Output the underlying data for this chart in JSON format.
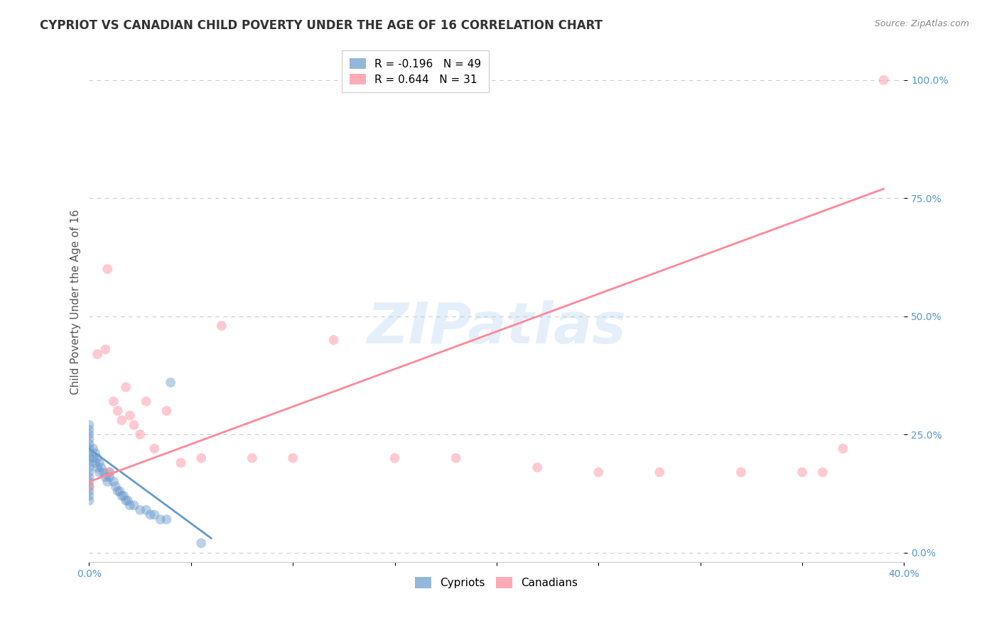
{
  "title": "CYPRIOT VS CANADIAN CHILD POVERTY UNDER THE AGE OF 16 CORRELATION CHART",
  "source": "Source: ZipAtlas.com",
  "ylabel": "Child Poverty Under the Age of 16",
  "xlabel": "",
  "xlim": [
    0.0,
    0.4
  ],
  "ylim": [
    -0.02,
    1.08
  ],
  "yticks": [
    0.0,
    0.25,
    0.5,
    0.75,
    1.0
  ],
  "ytick_labels": [
    "0.0%",
    "25.0%",
    "50.0%",
    "75.0%",
    "100.0%"
  ],
  "xticks": [
    0.0,
    0.05,
    0.1,
    0.15,
    0.2,
    0.25,
    0.3,
    0.35,
    0.4
  ],
  "xtick_labels": [
    "0.0%",
    "",
    "",
    "",
    "",
    "",
    "",
    "",
    "40.0%"
  ],
  "cypriot_color": "#6699CC",
  "canadian_color": "#FF8899",
  "cypriot_R": -0.196,
  "cypriot_N": 49,
  "canadian_R": 0.644,
  "canadian_N": 31,
  "watermark": "ZIPatlas",
  "cypriot_points_x": [
    0.0,
    0.0,
    0.0,
    0.0,
    0.0,
    0.0,
    0.0,
    0.0,
    0.0,
    0.0,
    0.0,
    0.0,
    0.0,
    0.0,
    0.0,
    0.0,
    0.0,
    0.002,
    0.002,
    0.003,
    0.003,
    0.004,
    0.004,
    0.005,
    0.005,
    0.006,
    0.007,
    0.008,
    0.009,
    0.01,
    0.01,
    0.012,
    0.013,
    0.014,
    0.015,
    0.016,
    0.017,
    0.018,
    0.019,
    0.02,
    0.022,
    0.025,
    0.028,
    0.03,
    0.032,
    0.035,
    0.038,
    0.04,
    0.055
  ],
  "cypriot_points_y": [
    0.27,
    0.26,
    0.25,
    0.24,
    0.23,
    0.22,
    0.21,
    0.2,
    0.19,
    0.18,
    0.17,
    0.16,
    0.15,
    0.14,
    0.13,
    0.12,
    0.11,
    0.22,
    0.2,
    0.21,
    0.19,
    0.2,
    0.18,
    0.19,
    0.17,
    0.18,
    0.17,
    0.16,
    0.15,
    0.17,
    0.16,
    0.15,
    0.14,
    0.13,
    0.13,
    0.12,
    0.12,
    0.11,
    0.11,
    0.1,
    0.1,
    0.09,
    0.09,
    0.08,
    0.08,
    0.07,
    0.07,
    0.36,
    0.02
  ],
  "canadian_points_x": [
    0.0,
    0.004,
    0.008,
    0.009,
    0.01,
    0.012,
    0.014,
    0.016,
    0.018,
    0.02,
    0.022,
    0.025,
    0.028,
    0.032,
    0.038,
    0.045,
    0.055,
    0.065,
    0.08,
    0.1,
    0.12,
    0.15,
    0.18,
    0.22,
    0.25,
    0.28,
    0.32,
    0.35,
    0.36,
    0.37,
    0.39
  ],
  "canadian_points_y": [
    0.14,
    0.42,
    0.43,
    0.6,
    0.17,
    0.32,
    0.3,
    0.28,
    0.35,
    0.29,
    0.27,
    0.25,
    0.32,
    0.22,
    0.3,
    0.19,
    0.2,
    0.48,
    0.2,
    0.2,
    0.45,
    0.2,
    0.2,
    0.18,
    0.17,
    0.17,
    0.17,
    0.17,
    0.17,
    0.22,
    1.0
  ],
  "cypriot_line_x": [
    0.0,
    0.06
  ],
  "cypriot_line_y": [
    0.22,
    0.03
  ],
  "canadian_line_x": [
    0.0,
    0.39
  ],
  "canadian_line_y": [
    0.15,
    0.77
  ],
  "background_color": "#ffffff",
  "grid_color": "#cccccc",
  "title_fontsize": 12,
  "label_fontsize": 11,
  "tick_fontsize": 10,
  "point_size": 100,
  "point_alpha": 0.45
}
